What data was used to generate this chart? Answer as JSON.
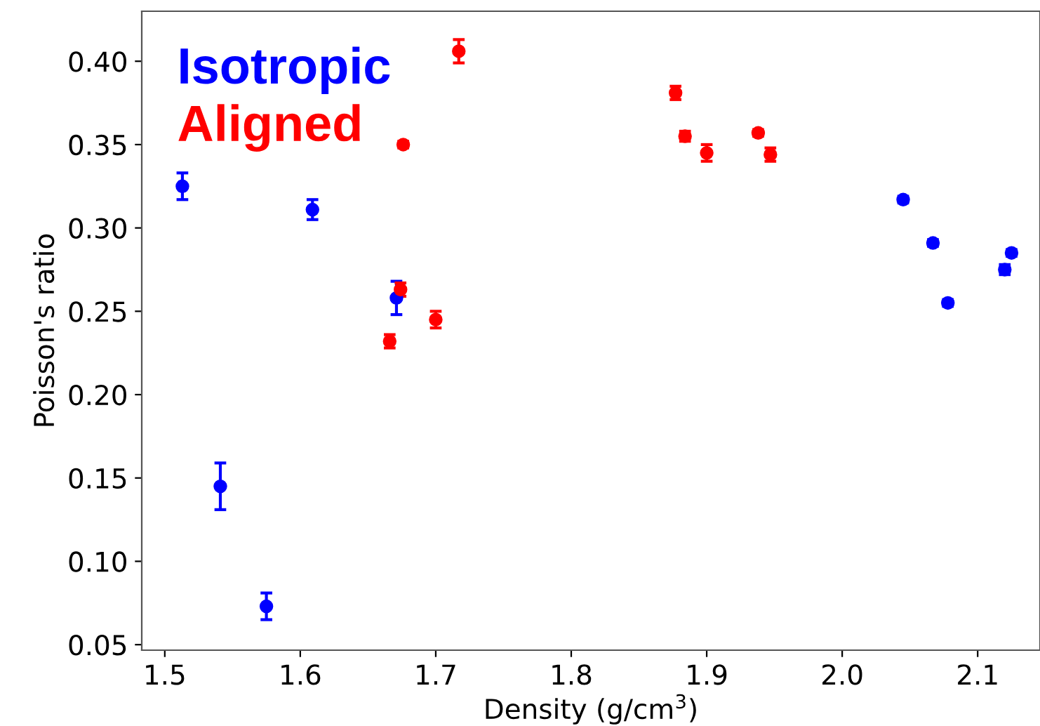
{
  "chart_data": {
    "type": "scatter",
    "xlabel": "Density (g/cm$^{3}$)",
    "ylabel": "Poisson's ratio",
    "xlim": [
      1.483,
      2.146
    ],
    "ylim": [
      0.0467,
      0.43
    ],
    "xticks": [
      {
        "value": 1.5,
        "label": "1.5"
      },
      {
        "value": 1.6,
        "label": "1.6"
      },
      {
        "value": 1.7,
        "label": "1.7"
      },
      {
        "value": 1.8,
        "label": "1.8"
      },
      {
        "value": 1.9,
        "label": "1.9"
      },
      {
        "value": 2.0,
        "label": "2.0"
      },
      {
        "value": 2.1,
        "label": "2.1"
      }
    ],
    "yticks": [
      {
        "value": 0.05,
        "label": "0.05"
      },
      {
        "value": 0.1,
        "label": "0.10"
      },
      {
        "value": 0.15,
        "label": "0.15"
      },
      {
        "value": 0.2,
        "label": "0.20"
      },
      {
        "value": 0.25,
        "label": "0.25"
      },
      {
        "value": 0.3,
        "label": "0.30"
      },
      {
        "value": 0.35,
        "label": "0.35"
      },
      {
        "value": 0.4,
        "label": "0.40"
      }
    ],
    "marker": "circle",
    "legend": "top left",
    "grid": false,
    "series": [
      {
        "name": "Isotropic",
        "color": "#0000ff",
        "x": [
          1.513,
          1.541,
          1.575,
          1.609,
          1.671,
          2.045,
          2.067,
          2.078,
          2.12,
          2.125
        ],
        "values": [
          0.325,
          0.145,
          0.073,
          0.311,
          0.258,
          0.317,
          0.291,
          0.255,
          0.275,
          0.285
        ],
        "errors": [
          0.008,
          0.014,
          0.008,
          0.006,
          0.01,
          0.002,
          0.002,
          0.002,
          0.003,
          0.002
        ]
      },
      {
        "name": "Aligned",
        "color": "#ff0000",
        "x": [
          1.666,
          1.674,
          1.676,
          1.7,
          1.717,
          1.877,
          1.884,
          1.9,
          1.938,
          1.947
        ],
        "values": [
          0.232,
          0.263,
          0.35,
          0.245,
          0.406,
          0.381,
          0.355,
          0.345,
          0.357,
          0.344
        ],
        "errors": [
          0.004,
          0.004,
          0.002,
          0.005,
          0.007,
          0.004,
          0.003,
          0.005,
          0.002,
          0.004
        ]
      }
    ]
  }
}
